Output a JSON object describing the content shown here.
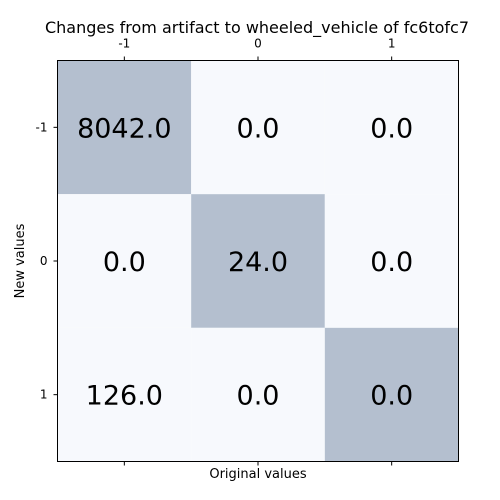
{
  "chart_data": {
    "type": "heatmap",
    "title": "Changes from artifact to wheeled_vehicle of fc6tofc7",
    "xlabel": "Original values",
    "ylabel": "New values",
    "x_categories": [
      "-1",
      "0",
      "1"
    ],
    "y_categories": [
      "-1",
      "0",
      "1"
    ],
    "x_tick_position": "top-and-bottom",
    "matrix": [
      [
        8042.0,
        0.0,
        0.0
      ],
      [
        0.0,
        24.0,
        0.0
      ],
      [
        126.0,
        0.0,
        0.0
      ]
    ],
    "cell_labels": [
      [
        "8042.0",
        "0.0",
        "0.0"
      ],
      [
        "0.0",
        "24.0",
        "0.0"
      ],
      [
        "126.0",
        "0.0",
        "0.0"
      ]
    ],
    "highlight_cells": [
      [
        0,
        0
      ],
      [
        1,
        1
      ],
      [
        2,
        2
      ]
    ],
    "colors": {
      "highlight": "#b4bfcf",
      "background": "#f7f9fd"
    }
  }
}
